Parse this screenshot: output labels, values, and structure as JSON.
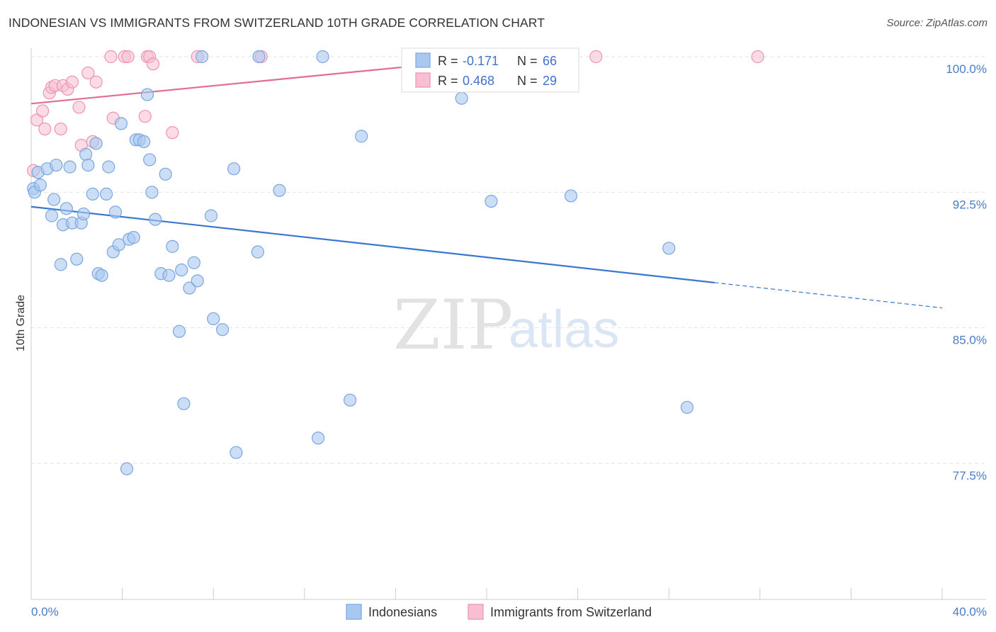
{
  "chart_data": {
    "type": "scatter",
    "title": "INDONESIAN VS IMMIGRANTS FROM SWITZERLAND 10TH GRADE CORRELATION CHART",
    "source": "Source: ZipAtlas.com",
    "ylabel": "10th Grade",
    "xlabel": "",
    "xlim": [
      0,
      40
    ],
    "ylim": [
      70.5,
      101.5
    ],
    "x_tick_labels": [
      "0.0%",
      "40.0%"
    ],
    "y_ticks": [
      {
        "value": 100.0,
        "label": "100.0%"
      },
      {
        "value": 92.5,
        "label": "92.5%"
      },
      {
        "value": 85.0,
        "label": "85.0%"
      },
      {
        "value": 77.5,
        "label": "77.5%"
      }
    ],
    "watermark": {
      "zip": "ZIP",
      "atlas": "atlas"
    },
    "colors": {
      "indonesians_fill": "#a9c8f0",
      "indonesians_stroke": "#7aa6e0",
      "indonesians_line": "#3b77d0",
      "swiss_fill": "#f7bfd1",
      "swiss_stroke": "#ee93b1",
      "swiss_line": "#e26c95",
      "grid": "#e2e2e2",
      "tick_text": "#4a7cc7"
    },
    "legend": {
      "r_label": "R =",
      "n_label": "N =",
      "rows": [
        {
          "series": "Indonesians",
          "r": "-0.171",
          "n": "66"
        },
        {
          "series": "Immigrants from Switzerland",
          "r": "0.468",
          "n": "29"
        }
      ]
    },
    "series": [
      {
        "name": "Indonesians",
        "trend": {
          "x0": 0.0,
          "y0": 91.7,
          "x1": 30.0,
          "y1": 87.5,
          "dash_to_x": 40.0,
          "dash_to_y": 86.1
        },
        "points": [
          [
            0.1,
            92.7
          ],
          [
            0.15,
            92.5
          ],
          [
            0.3,
            93.6
          ],
          [
            0.4,
            92.9
          ],
          [
            0.7,
            93.8
          ],
          [
            0.9,
            91.2
          ],
          [
            1.0,
            92.1
          ],
          [
            1.1,
            94.0
          ],
          [
            1.3,
            88.5
          ],
          [
            1.4,
            90.7
          ],
          [
            1.55,
            91.6
          ],
          [
            1.7,
            93.9
          ],
          [
            1.8,
            90.8
          ],
          [
            2.0,
            88.8
          ],
          [
            2.2,
            90.8
          ],
          [
            2.3,
            91.3
          ],
          [
            2.4,
            94.6
          ],
          [
            2.5,
            94.0
          ],
          [
            2.7,
            92.4
          ],
          [
            2.85,
            95.2
          ],
          [
            2.95,
            88.0
          ],
          [
            3.1,
            87.9
          ],
          [
            3.3,
            92.4
          ],
          [
            3.4,
            93.9
          ],
          [
            3.6,
            89.2
          ],
          [
            3.7,
            91.4
          ],
          [
            3.85,
            89.6
          ],
          [
            3.95,
            96.3
          ],
          [
            4.2,
            77.2
          ],
          [
            4.3,
            89.9
          ],
          [
            4.5,
            90.0
          ],
          [
            4.6,
            95.4
          ],
          [
            4.75,
            95.4
          ],
          [
            4.95,
            95.3
          ],
          [
            5.1,
            97.9
          ],
          [
            5.2,
            94.3
          ],
          [
            5.3,
            92.5
          ],
          [
            5.45,
            91.0
          ],
          [
            5.7,
            88.0
          ],
          [
            5.9,
            93.5
          ],
          [
            6.05,
            87.9
          ],
          [
            6.2,
            89.5
          ],
          [
            6.5,
            84.8
          ],
          [
            6.6,
            88.2
          ],
          [
            6.7,
            80.8
          ],
          [
            6.95,
            87.2
          ],
          [
            7.15,
            88.6
          ],
          [
            7.3,
            87.6
          ],
          [
            7.5,
            100.0
          ],
          [
            7.9,
            91.2
          ],
          [
            8.0,
            85.5
          ],
          [
            8.4,
            84.9
          ],
          [
            8.9,
            93.8
          ],
          [
            9.0,
            78.1
          ],
          [
            9.95,
            89.2
          ],
          [
            10.0,
            100.0
          ],
          [
            10.9,
            92.6
          ],
          [
            12.6,
            78.9
          ],
          [
            12.8,
            100.0
          ],
          [
            14.0,
            81.0
          ],
          [
            14.5,
            95.6
          ],
          [
            18.9,
            97.7
          ],
          [
            20.2,
            92.0
          ],
          [
            23.7,
            92.3
          ],
          [
            28.0,
            89.4
          ],
          [
            28.8,
            80.6
          ]
        ]
      },
      {
        "name": "Immigrants from Switzerland",
        "trend": {
          "x0": 0.0,
          "y0": 97.4,
          "x1": 21.0,
          "y1": 100.0
        },
        "points": [
          [
            0.1,
            93.7
          ],
          [
            0.25,
            96.5
          ],
          [
            0.5,
            97.0
          ],
          [
            0.6,
            96.0
          ],
          [
            0.8,
            98.0
          ],
          [
            0.9,
            98.3
          ],
          [
            1.05,
            98.4
          ],
          [
            1.3,
            96.0
          ],
          [
            1.4,
            98.4
          ],
          [
            1.6,
            98.2
          ],
          [
            1.8,
            98.6
          ],
          [
            2.1,
            97.2
          ],
          [
            2.2,
            95.1
          ],
          [
            2.5,
            99.1
          ],
          [
            2.7,
            95.3
          ],
          [
            2.85,
            98.6
          ],
          [
            3.5,
            100.0
          ],
          [
            3.6,
            96.6
          ],
          [
            4.1,
            100.0
          ],
          [
            4.25,
            100.0
          ],
          [
            5.0,
            96.7
          ],
          [
            5.1,
            100.0
          ],
          [
            5.2,
            100.0
          ],
          [
            5.35,
            99.6
          ],
          [
            6.2,
            95.8
          ],
          [
            7.3,
            100.0
          ],
          [
            10.1,
            100.0
          ],
          [
            24.8,
            100.0
          ],
          [
            31.9,
            100.0
          ]
        ]
      }
    ]
  }
}
